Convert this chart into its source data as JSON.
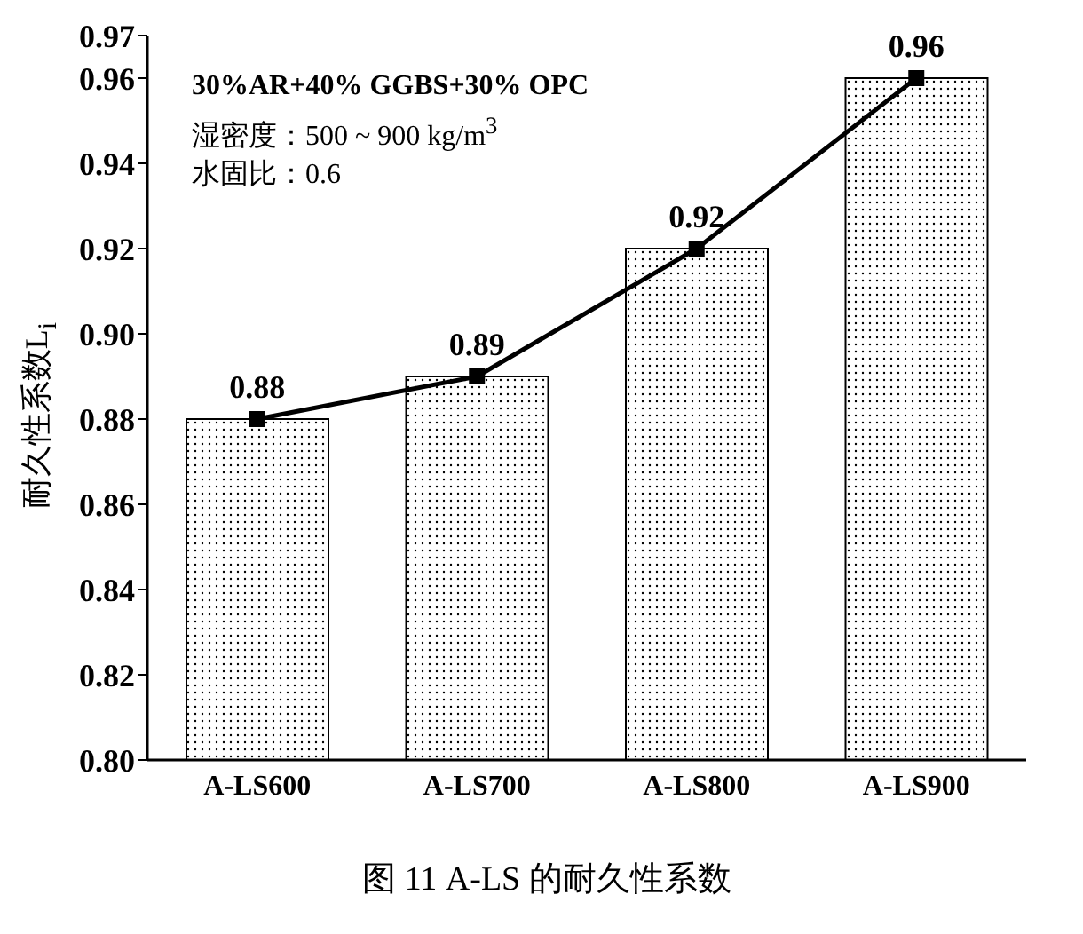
{
  "chart_data": {
    "type": "bar",
    "title": "图 11 A-LS 的耐久性系数",
    "ylabel": "耐久性系数L$_{i}$",
    "annotations": [
      "30%AR+40% GGBS+30% OPC",
      "湿密度：500 ~ 900 kg/m$^{3}$",
      "水固比：0.6"
    ],
    "categories": [
      "A-LS600",
      "A-LS700",
      "A-LS800",
      "A-LS900"
    ],
    "series": [
      {
        "color": "#000000",
        "values": [
          0.88,
          0.89,
          0.92,
          0.96
        ]
      },
      {
        "type": "line",
        "color": "#000000",
        "marker": "square",
        "values": [
          0.88,
          0.89,
          0.92,
          0.96
        ],
        "value_labels": [
          "0.88",
          "0.89",
          "0.92",
          "0.96"
        ]
      }
    ],
    "ylim": [
      0.8,
      0.97
    ],
    "yticks": [
      {
        "value": 0.8,
        "label": "0.80"
      },
      0.82,
      0.84,
      0.86,
      0.88,
      {
        "value": 0.9,
        "label": "0.90"
      },
      0.92,
      0.94,
      0.96,
      0.97
    ],
    "grid": false,
    "legend": false
  }
}
